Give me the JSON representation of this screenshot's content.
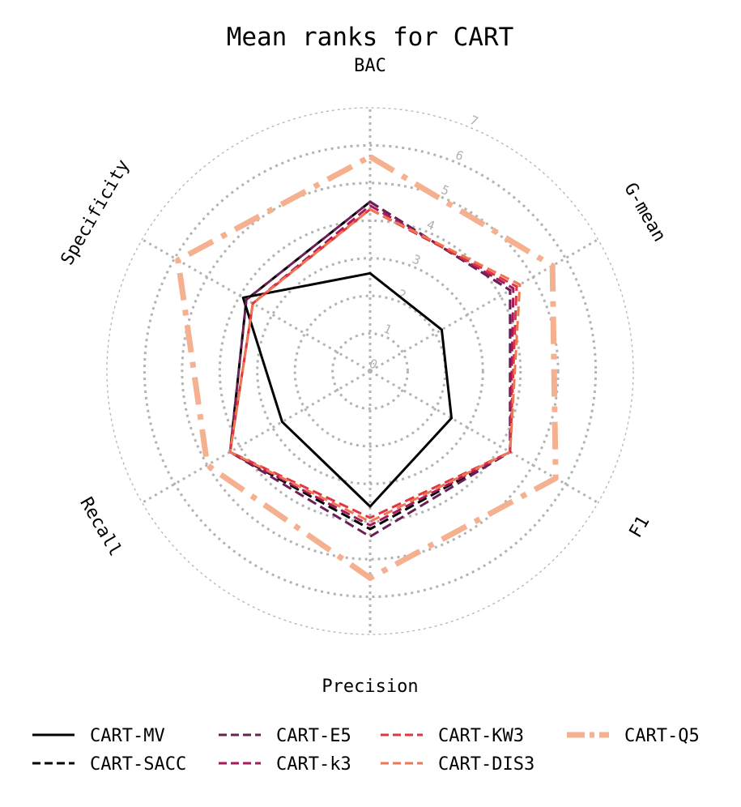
{
  "chart_data": {
    "type": "radar",
    "title": "Mean ranks for CART",
    "axes": [
      "BAC",
      "G-mean",
      "F1",
      "Precision",
      "Recall",
      "Specificity"
    ],
    "rlim": [
      0,
      7
    ],
    "rticks": [
      "0",
      "1",
      "2",
      "3",
      "4",
      "5",
      "6",
      "7"
    ],
    "grid": true,
    "legend_position": "bottom",
    "series": [
      {
        "name": "CART-MV",
        "values": [
          2.6,
          2.2,
          2.5,
          3.6,
          2.7,
          3.9
        ],
        "color": "#000000",
        "style": "solid",
        "width": 3
      },
      {
        "name": "CART-SACC",
        "values": [
          4.5,
          4.3,
          4.3,
          4.2,
          4.3,
          3.8
        ],
        "color": "#000000",
        "style": "dash",
        "width": 3
      },
      {
        "name": "CART-E5",
        "values": [
          4.5,
          4.3,
          4.3,
          4.4,
          4.3,
          3.8
        ],
        "color": "#6b1f55",
        "style": "dash",
        "width": 3
      },
      {
        "name": "CART-k3",
        "values": [
          4.4,
          4.4,
          4.3,
          4.1,
          4.3,
          3.6
        ],
        "color": "#a8195c",
        "style": "dash",
        "width": 3
      },
      {
        "name": "CART-KW3",
        "values": [
          4.3,
          4.5,
          4.3,
          3.9,
          4.3,
          3.6
        ],
        "color": "#e0363f",
        "style": "dash",
        "width": 3
      },
      {
        "name": "CART-DIS3",
        "values": [
          4.3,
          4.6,
          4.3,
          4.0,
          4.3,
          3.6
        ],
        "color": "#f07651",
        "style": "dash",
        "width": 3
      },
      {
        "name": "CART-Q5",
        "values": [
          5.7,
          5.6,
          5.7,
          5.5,
          5.0,
          5.9
        ],
        "color": "#f5b18f",
        "style": "dash",
        "width": 7
      }
    ]
  }
}
